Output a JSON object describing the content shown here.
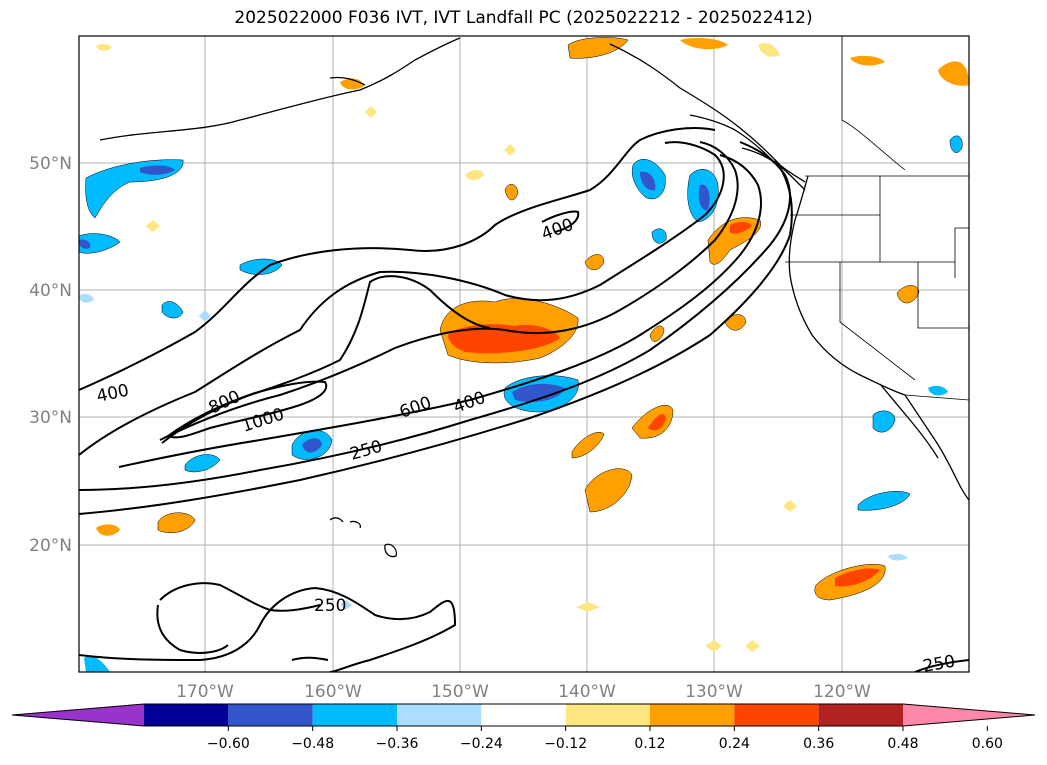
{
  "title": "2025022000 F036 IVT, IVT Landfall PC (2025022212 - 2025022412)",
  "lat_labels": [
    "50°N",
    "40°N",
    "30°N",
    "20°N"
  ],
  "lon_labels": [
    "170°W",
    "160°W",
    "150°W",
    "140°W",
    "130°W",
    "120°W"
  ],
  "contour_labels": [
    "400",
    "400",
    "800",
    "1000",
    "600",
    "400",
    "250",
    "250",
    "250"
  ],
  "colorbar": {
    "ticks": [
      "−0.60",
      "−0.48",
      "−0.36",
      "−0.24",
      "−0.12",
      "0.12",
      "0.24",
      "0.36",
      "0.48",
      "0.60"
    ],
    "colors": [
      "#9933cc",
      "#000099",
      "#3355cc",
      "#00bbff",
      "#aaddff",
      "#ffffff",
      "#ffe680",
      "#ffa000",
      "#ff4400",
      "#b22222",
      "#ff88aa"
    ]
  },
  "colors": {
    "frame": "#000000",
    "grid": "#b0b0b0",
    "axis_label": "#808080"
  }
}
